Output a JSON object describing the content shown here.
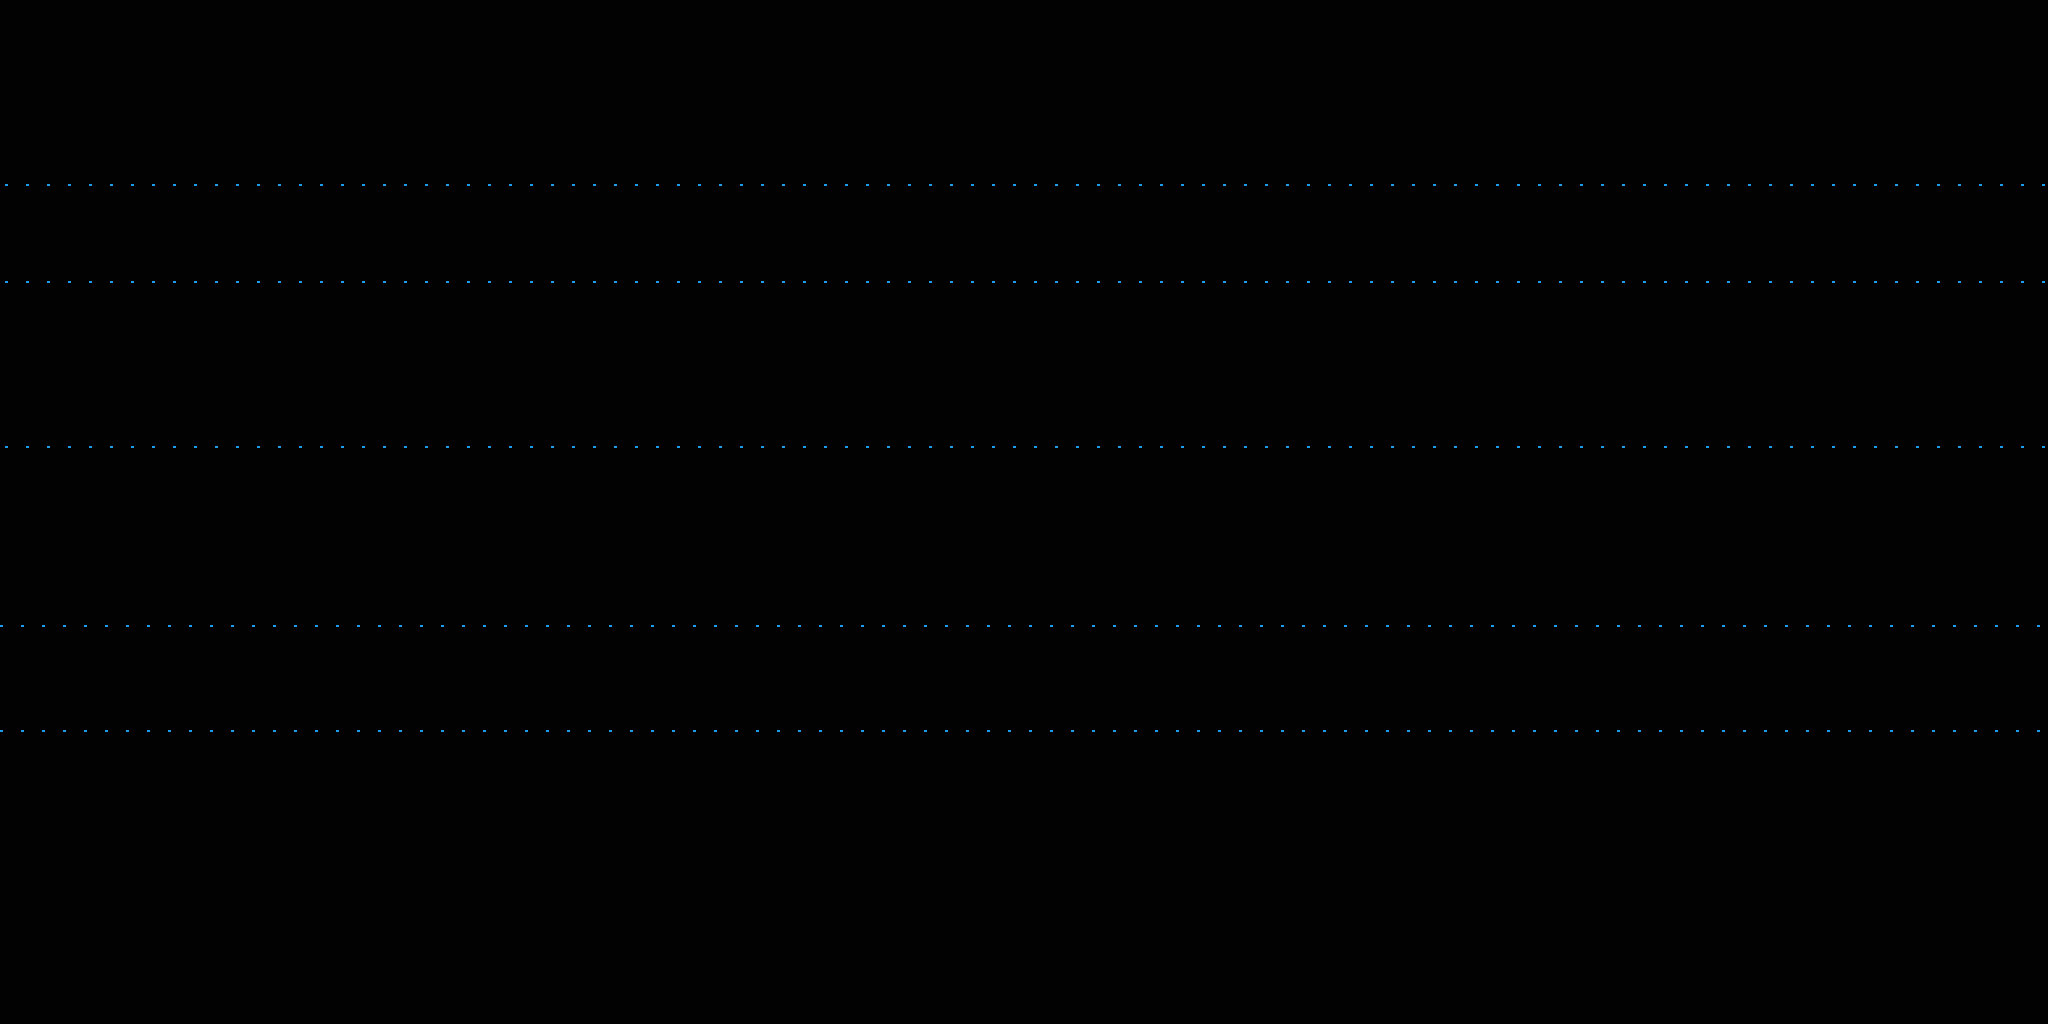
{
  "background_color": "#020202",
  "line_color": "#1e9be9",
  "line_style": "dotted",
  "line_count": 5
}
